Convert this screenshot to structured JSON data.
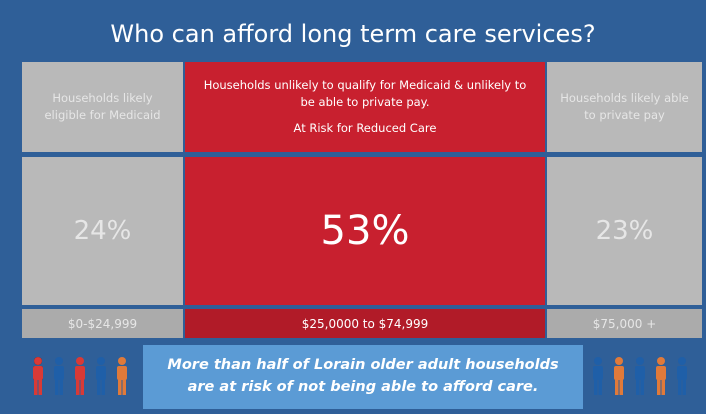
{
  "title": "Who can afford long term care services?",
  "columns": [
    {
      "header": "Households likely eligible for Medicaid",
      "percent": "24%",
      "range": "$0-$24,999"
    },
    {
      "header": "Households unlikely to qualify for Medicaid & unlikely to be able to private pay.",
      "subheader": "At Risk for Reduced Care",
      "percent": "53%",
      "range": "$25,0000 to $74,999"
    },
    {
      "header": "Households likely able to private pay",
      "percent": "23%",
      "range": "$75,000 +"
    }
  ],
  "note": "More than half of Lorain older adult households are at risk of not being able to afford care."
}
